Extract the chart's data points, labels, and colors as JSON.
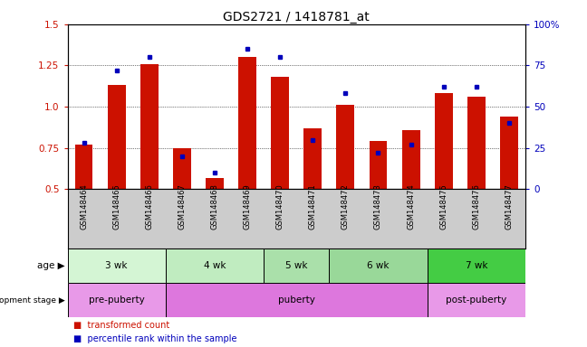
{
  "title": "GDS2721 / 1418781_at",
  "samples": [
    "GSM148464",
    "GSM148465",
    "GSM148466",
    "GSM148467",
    "GSM148468",
    "GSM148469",
    "GSM148470",
    "GSM148471",
    "GSM148472",
    "GSM148473",
    "GSM148474",
    "GSM148475",
    "GSM148476",
    "GSM148477"
  ],
  "transformed_count": [
    0.77,
    1.13,
    1.26,
    0.75,
    0.57,
    1.3,
    1.18,
    0.87,
    1.01,
    0.79,
    0.86,
    1.08,
    1.06,
    0.94
  ],
  "percentile_rank": [
    28,
    72,
    80,
    20,
    10,
    85,
    80,
    30,
    58,
    22,
    27,
    62,
    62,
    40
  ],
  "ylim_left": [
    0.5,
    1.5
  ],
  "ylim_right": [
    0,
    100
  ],
  "yticks_left": [
    0.5,
    0.75,
    1.0,
    1.25,
    1.5
  ],
  "yticks_right": [
    0,
    25,
    50,
    75,
    100
  ],
  "ytick_labels_right": [
    "0",
    "25",
    "50",
    "75",
    "100%"
  ],
  "bar_color": "#cc1100",
  "dot_color": "#0000bb",
  "age_groups": [
    {
      "label": "3 wk",
      "start": 0,
      "end": 3,
      "color": "#d4f5d4"
    },
    {
      "label": "4 wk",
      "start": 3,
      "end": 6,
      "color": "#c0ecc0"
    },
    {
      "label": "5 wk",
      "start": 6,
      "end": 8,
      "color": "#aae0aa"
    },
    {
      "label": "6 wk",
      "start": 8,
      "end": 11,
      "color": "#99d899"
    },
    {
      "label": "7 wk",
      "start": 11,
      "end": 14,
      "color": "#44cc44"
    }
  ],
  "dev_groups": [
    {
      "label": "pre-puberty",
      "start": 0,
      "end": 3,
      "color": "#e899e8"
    },
    {
      "label": "puberty",
      "start": 3,
      "end": 11,
      "color": "#dd77dd"
    },
    {
      "label": "post-puberty",
      "start": 11,
      "end": 14,
      "color": "#e899e8"
    }
  ],
  "legend_items": [
    {
      "label": "transformed count",
      "color": "#cc1100"
    },
    {
      "label": "percentile rank within the sample",
      "color": "#0000bb"
    }
  ],
  "panel_bg": "#cccccc",
  "grid_yticks": [
    0.75,
    1.0,
    1.25
  ]
}
